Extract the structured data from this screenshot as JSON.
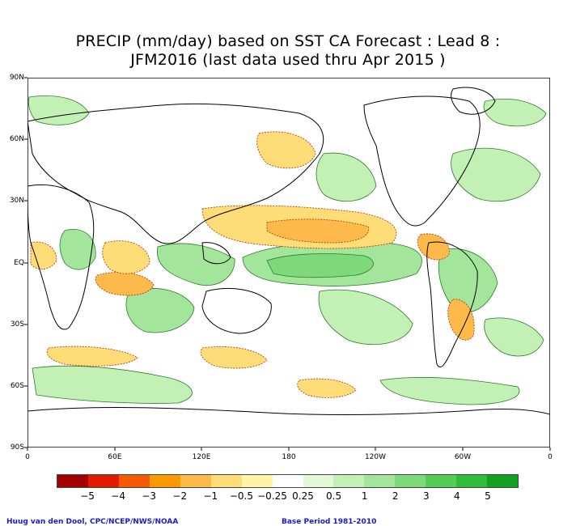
{
  "title_line1": "PRECIP (mm/day) based on SST CA Forecast : Lead 8 :",
  "title_line2": "JFM2016 (last data used thru Apr 2015 )",
  "lat_labels": [
    "90N",
    "60N",
    "30N",
    "EQ",
    "30S",
    "60S",
    "90S"
  ],
  "lon_labels": [
    "0",
    "60E",
    "120E",
    "180",
    "120W",
    "60W",
    "0"
  ],
  "legend": {
    "colors": [
      "#a50000",
      "#e11a00",
      "#f55a00",
      "#fb9a00",
      "#fdb94a",
      "#fedc78",
      "#fff4a8",
      "#ffffff",
      "#e3f8d8",
      "#c3f0b4",
      "#a3e69b",
      "#7dd97a",
      "#55cc55",
      "#2fbc3a",
      "#13a024"
    ],
    "labels": [
      "−5",
      "−4",
      "−3",
      "−2",
      "−1",
      "−0.5",
      "−0.25",
      "0.25",
      "0.5",
      "1",
      "2",
      "3",
      "4",
      "5"
    ]
  },
  "credit_left": "Huug van den Dool, CPC/NCEP/NWS/NOAA",
  "credit_right": "Base Period 1981-2010",
  "map_colors": {
    "dry1": "#fedc78",
    "dry2": "#fdb94a",
    "dry3": "#fb9a00",
    "wet1": "#c3f0b4",
    "wet2": "#a3e69b",
    "wet3": "#7dd97a",
    "wet4": "#55cc55",
    "coast": "#000000",
    "contour_dry": "#b03000",
    "contour_wet": "#2a7a2a"
  }
}
